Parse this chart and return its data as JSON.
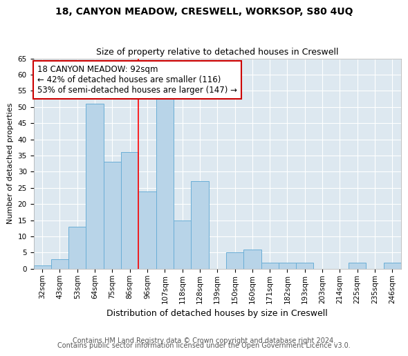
{
  "title": "18, CANYON MEADOW, CRESWELL, WORKSOP, S80 4UQ",
  "subtitle": "Size of property relative to detached houses in Creswell",
  "xlabel": "Distribution of detached houses by size in Creswell",
  "ylabel": "Number of detached properties",
  "categories": [
    "32sqm",
    "43sqm",
    "53sqm",
    "64sqm",
    "75sqm",
    "86sqm",
    "96sqm",
    "107sqm",
    "118sqm",
    "128sqm",
    "139sqm",
    "150sqm",
    "160sqm",
    "171sqm",
    "182sqm",
    "193sqm",
    "203sqm",
    "214sqm",
    "225sqm",
    "235sqm",
    "246sqm"
  ],
  "values": [
    1,
    3,
    13,
    51,
    33,
    36,
    24,
    54,
    15,
    27,
    0,
    5,
    6,
    2,
    2,
    2,
    0,
    0,
    2,
    0,
    2
  ],
  "bar_color": "#b8d4e8",
  "bar_edge_color": "#6aaed6",
  "red_line_x": 5.5,
  "annotation_text": "18 CANYON MEADOW: 92sqm\n← 42% of detached houses are smaller (116)\n53% of semi-detached houses are larger (147) →",
  "annotation_box_color": "#ffffff",
  "annotation_box_edge_color": "#cc0000",
  "ylim": [
    0,
    65
  ],
  "yticks": [
    0,
    5,
    10,
    15,
    20,
    25,
    30,
    35,
    40,
    45,
    50,
    55,
    60,
    65
  ],
  "footer_line1": "Contains HM Land Registry data © Crown copyright and database right 2024.",
  "footer_line2": "Contains public sector information licensed under the Open Government Licence v3.0.",
  "plot_bg_color": "#dde8f0",
  "fig_bg_color": "#ffffff",
  "grid_color": "#ffffff",
  "title_fontsize": 10,
  "subtitle_fontsize": 9,
  "xlabel_fontsize": 9,
  "ylabel_fontsize": 8,
  "tick_fontsize": 7.5,
  "annotation_fontsize": 8.5,
  "footer_fontsize": 7
}
